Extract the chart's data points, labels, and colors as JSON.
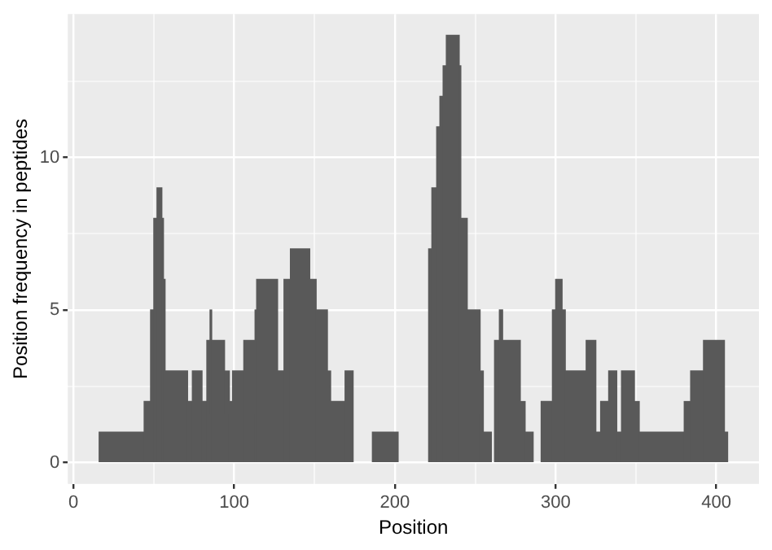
{
  "chart_data": {
    "type": "histogram",
    "xlabel": "Position",
    "ylabel": "Position frequency in peptides",
    "color": "#595959",
    "bins": [
      16,
      44,
      48,
      50,
      52,
      55,
      56,
      57,
      71,
      74,
      80,
      83,
      85,
      86,
      94,
      97,
      99,
      106,
      113,
      114,
      127,
      131,
      135,
      147,
      151,
      158,
      160,
      169,
      174,
      186,
      202,
      221,
      223,
      226,
      228,
      230,
      232,
      240,
      241,
      245,
      253,
      255,
      260,
      262,
      265,
      267,
      278,
      281,
      286,
      291,
      298,
      300,
      304,
      306,
      319,
      325,
      328,
      333,
      338,
      341,
      349,
      352,
      380,
      384,
      392,
      405,
      407
    ],
    "values": [
      1,
      2,
      5,
      8,
      9,
      8,
      6,
      3,
      2,
      3,
      2,
      4,
      5,
      4,
      3,
      2,
      3,
      4,
      5,
      6,
      3,
      6,
      7,
      6,
      5,
      3,
      2,
      3,
      null,
      1,
      null,
      7,
      9,
      11,
      12,
      13,
      14,
      13,
      8,
      5,
      3,
      1,
      null,
      4,
      5,
      4,
      2,
      1,
      null,
      2,
      5,
      6,
      5,
      3,
      4,
      1,
      2,
      3,
      1,
      3,
      2,
      1,
      2,
      3,
      4,
      1
    ],
    "xlim": [
      -3.5,
      426.5
    ],
    "ylim": [
      -0.7,
      14.7
    ],
    "xticks": [
      0,
      {
        "value": 50,
        "label": null
      },
      100,
      {
        "value": 150,
        "label": null
      },
      200,
      {
        "value": 250,
        "label": null
      },
      300,
      {
        "value": 350,
        "label": null
      },
      400
    ],
    "yticks": [
      0,
      {
        "value": 2.5,
        "label": null
      },
      5,
      {
        "value": 7.5,
        "label": null
      },
      10,
      {
        "value": 12.5,
        "label": null
      }
    ],
    "grid": true
  }
}
